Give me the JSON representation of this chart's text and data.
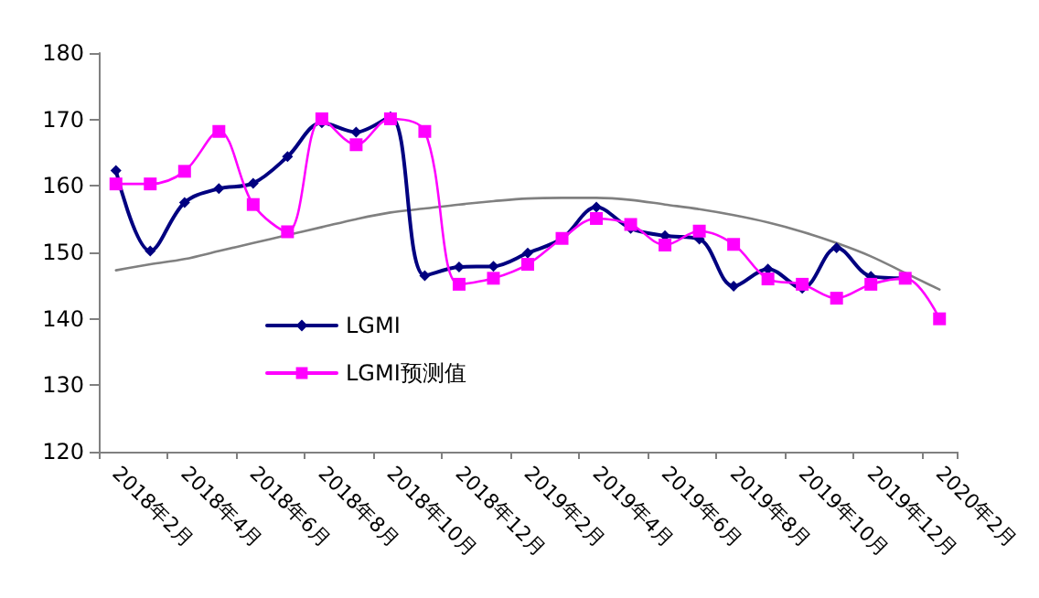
{
  "chart_data": {
    "type": "line",
    "categories": [
      "2018年2月",
      null,
      "2018年4月",
      null,
      "2018年6月",
      null,
      "2018年8月",
      null,
      "2018年10月",
      null,
      "2018年12月",
      null,
      "2019年2月",
      null,
      "2019年4月",
      null,
      "2019年6月",
      null,
      "2019年8月",
      null,
      "2019年10月",
      null,
      "2019年12月",
      null,
      "2020年2月"
    ],
    "series": [
      {
        "name": "LGMI",
        "color": "#000080",
        "marker": "diamond",
        "values": [
          162.3,
          150.2,
          157.5,
          159.6,
          160.4,
          164.4,
          169.5,
          168.1,
          170.4,
          146.5,
          147.8,
          147.9,
          149.9,
          152.1,
          156.8,
          153.6,
          152.5,
          152.0,
          144.9,
          147.5,
          144.6,
          150.7,
          146.4,
          146.1,
          null
        ]
      },
      {
        "name": "LGMI预测值",
        "color": "#ff00ff",
        "marker": "square",
        "values": [
          160.3,
          160.3,
          162.2,
          168.2,
          157.2,
          153.1,
          170.1,
          166.2,
          170.1,
          168.2,
          145.2,
          146.1,
          148.2,
          152.1,
          155.1,
          154.2,
          151.1,
          153.2,
          151.2,
          146.0,
          145.2,
          143.1,
          145.2,
          146.1,
          140.0
        ]
      },
      {
        "color": "#808080",
        "marker": "none",
        "values": [
          147.3,
          148.2,
          149.0,
          150.2,
          151.4,
          152.6,
          153.8,
          155.0,
          156.0,
          156.6,
          157.2,
          157.7,
          158.1,
          158.2,
          158.2,
          157.9,
          157.2,
          156.5,
          155.6,
          154.5,
          153.1,
          151.4,
          149.4,
          146.9,
          144.4
        ]
      }
    ],
    "ylim": [
      120,
      180
    ],
    "yticks": [
      120,
      130,
      140,
      150,
      160,
      170,
      180
    ],
    "grid": false,
    "legend": "bottom left",
    "line_style": "solid"
  }
}
